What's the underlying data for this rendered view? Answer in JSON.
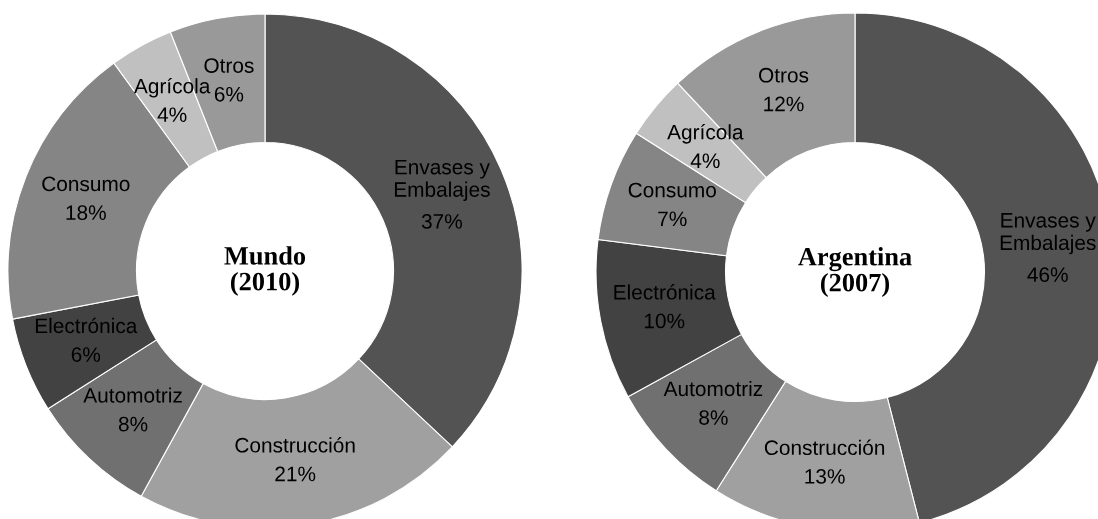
{
  "chart_data": [
    {
      "type": "donut",
      "title": "Mundo\n(2010)",
      "categories": [
        "Envases y\nEmbalajes",
        "Construcción",
        "Automotriz",
        "Electrónica",
        "Consumo",
        "Agrícola",
        "Otros"
      ],
      "values": [
        37,
        21,
        8,
        6,
        18,
        4,
        6
      ],
      "value_labels": [
        "37%",
        "21%",
        "8%",
        "6%",
        "18%",
        "4%",
        "6%"
      ],
      "colors": [
        "#535353",
        "#a0a0a0",
        "#707070",
        "#424242",
        "#858585",
        "#c0c0c0",
        "#999999"
      ]
    },
    {
      "type": "donut",
      "title": "Argentina\n(2007)",
      "categories": [
        "Envases y\nEmbalajes",
        "Construcción",
        "Automotriz",
        "Electrónica",
        "Consumo",
        "Agrícola",
        "Otros"
      ],
      "values": [
        46,
        13,
        8,
        10,
        7,
        4,
        12
      ],
      "value_labels": [
        "46%",
        "13%",
        "8%",
        "10%",
        "7%",
        "4%",
        "12%"
      ],
      "colors": [
        "#535353",
        "#a0a0a0",
        "#707070",
        "#424242",
        "#858585",
        "#c0c0c0",
        "#999999"
      ]
    }
  ]
}
